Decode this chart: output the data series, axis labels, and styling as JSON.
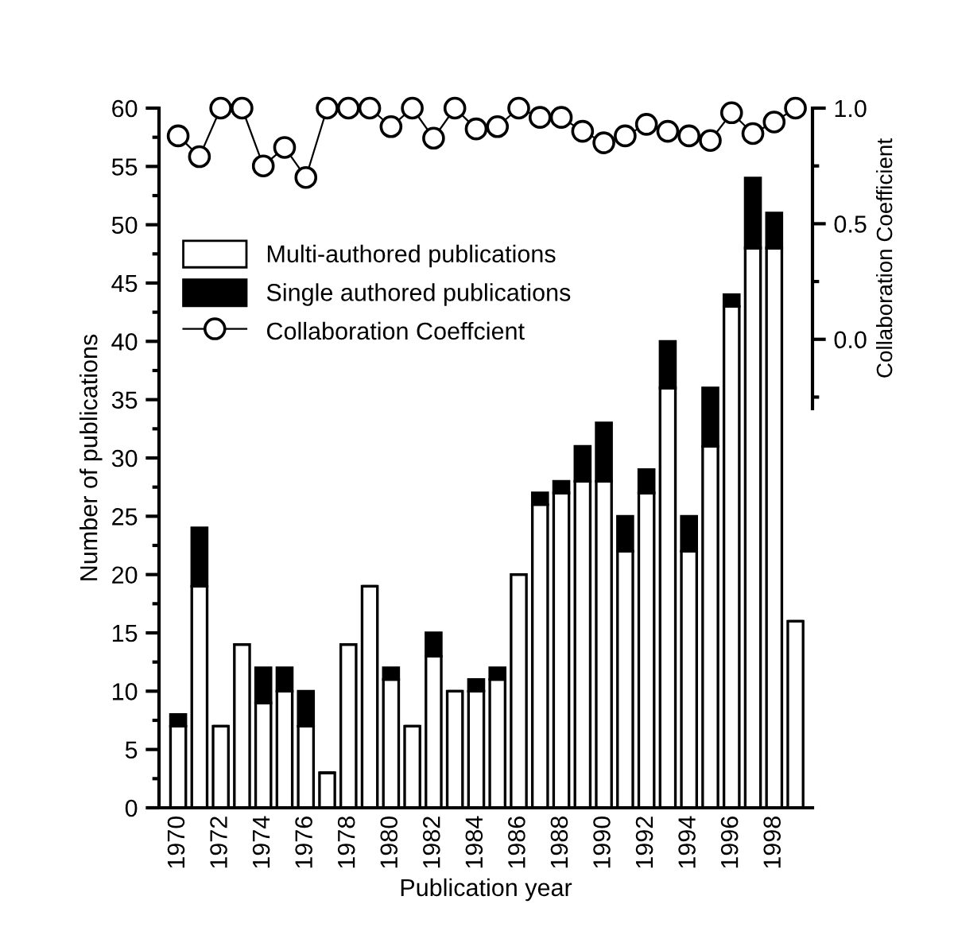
{
  "chart_data": {
    "type": "bar",
    "stacked": true,
    "xlabel": "Publication year",
    "ylabel": "Number of publications",
    "y2label": "Collaboration Coefficient",
    "categories": [
      "1970",
      null,
      "1972",
      null,
      "1974",
      null,
      "1976",
      null,
      "1978",
      null,
      "1980",
      null,
      "1982",
      null,
      "1984",
      null,
      "1986",
      null,
      "1988",
      null,
      "1990",
      null,
      "1992",
      null,
      "1994",
      null,
      "1996",
      null,
      "1998",
      null
    ],
    "series": [
      {
        "name": "Multi-authored publications",
        "color": "#ffffff",
        "values": [
          7,
          19,
          7,
          14,
          9,
          10,
          7,
          3,
          14,
          19,
          11,
          7,
          13,
          10,
          10,
          11,
          20,
          26,
          27,
          28,
          28,
          22,
          27,
          36,
          22,
          31,
          43,
          48,
          48,
          16
        ]
      },
      {
        "name": "Single authored publications",
        "color": "#000000",
        "values": [
          1,
          5,
          0,
          0,
          3,
          2,
          3,
          0,
          0,
          0,
          1,
          0,
          2,
          0,
          1,
          1,
          0,
          1,
          1,
          3,
          5,
          3,
          2,
          4,
          3,
          5,
          1,
          6,
          3,
          0
        ]
      },
      {
        "name": "Collaboration Coeffcient",
        "type": "line",
        "axis": "y2",
        "color": "#000000",
        "marker": "circle",
        "values": [
          0.88,
          0.79,
          1.0,
          1.0,
          0.75,
          0.83,
          0.7,
          1.0,
          1.0,
          1.0,
          0.92,
          1.0,
          0.87,
          1.0,
          0.91,
          0.92,
          1.0,
          0.96,
          0.96,
          0.9,
          0.85,
          0.88,
          0.93,
          0.9,
          0.88,
          0.86,
          0.98,
          0.89,
          0.94,
          1.0
        ]
      }
    ],
    "ylim": [
      0,
      60
    ],
    "yticks": [
      0,
      5,
      10,
      15,
      20,
      25,
      30,
      35,
      40,
      45,
      50,
      55,
      60
    ],
    "y2lim": [
      -0.3,
      1.0
    ],
    "y2ticks": [
      {
        "value": 0,
        "label": "0.0"
      },
      0.5,
      {
        "value": 1,
        "label": "1.0"
      }
    ],
    "legend": "top left",
    "grid": false
  }
}
